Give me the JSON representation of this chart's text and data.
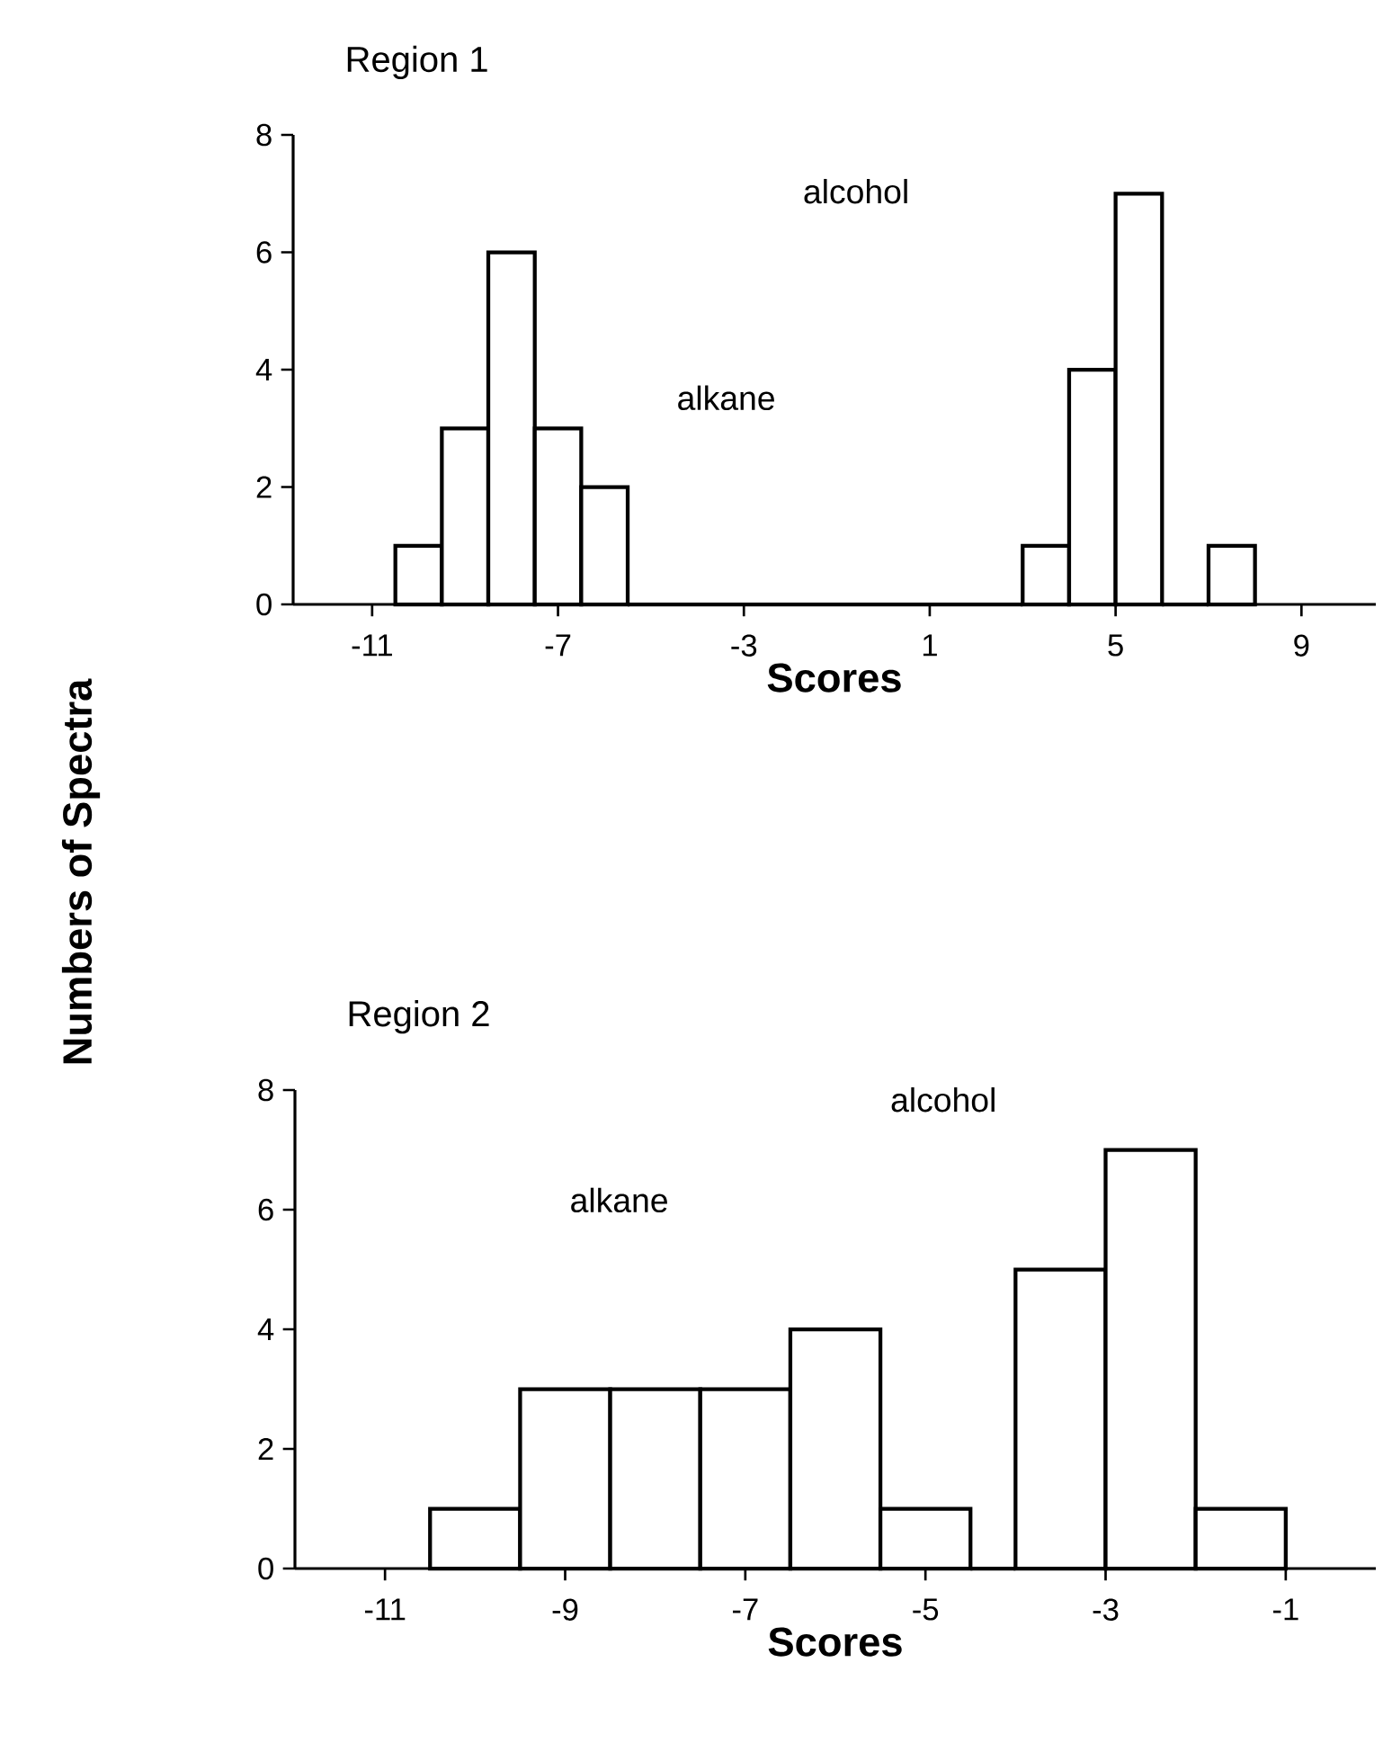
{
  "chart_data": [
    {
      "type": "histogram",
      "title": "Region 1",
      "xlabel": "Scores",
      "ylabel": "Numbers of Spectra",
      "xlim": [
        -12.7,
        10.6
      ],
      "xticks": [
        -11,
        -7,
        -3,
        1,
        5,
        9
      ],
      "ylim": [
        0,
        8
      ],
      "yticks": [
        0,
        2,
        4,
        6,
        8
      ],
      "color": "#000000",
      "bins": [
        -10.5,
        -9.5,
        -8.5,
        -7.5,
        -6.5,
        -5.5,
        3,
        4,
        5,
        6,
        7,
        8
      ],
      "values": [
        1,
        3,
        6,
        3,
        2,
        0,
        1,
        4,
        7,
        0,
        1
      ],
      "annotations": [
        "alkane",
        "alcohol"
      ]
    },
    {
      "type": "histogram",
      "title": "Region 2",
      "xlabel": "Scores",
      "xlim": [
        -12,
        0
      ],
      "xticks": [
        -11,
        -9,
        -7,
        -5,
        -3,
        -1
      ],
      "ylim": [
        0,
        8
      ],
      "yticks": [
        0,
        2,
        4,
        6,
        8
      ],
      "color": "#000000",
      "bins": [
        -10.5,
        -9.5,
        -8.5,
        -7.5,
        -6.5,
        -5.5,
        -4.5,
        -4,
        -3,
        -2,
        -1
      ],
      "values": [
        1,
        3,
        3,
        3,
        4,
        1,
        0,
        5,
        7,
        1
      ],
      "annotations": [
        "alkane",
        "alcohol"
      ]
    }
  ]
}
